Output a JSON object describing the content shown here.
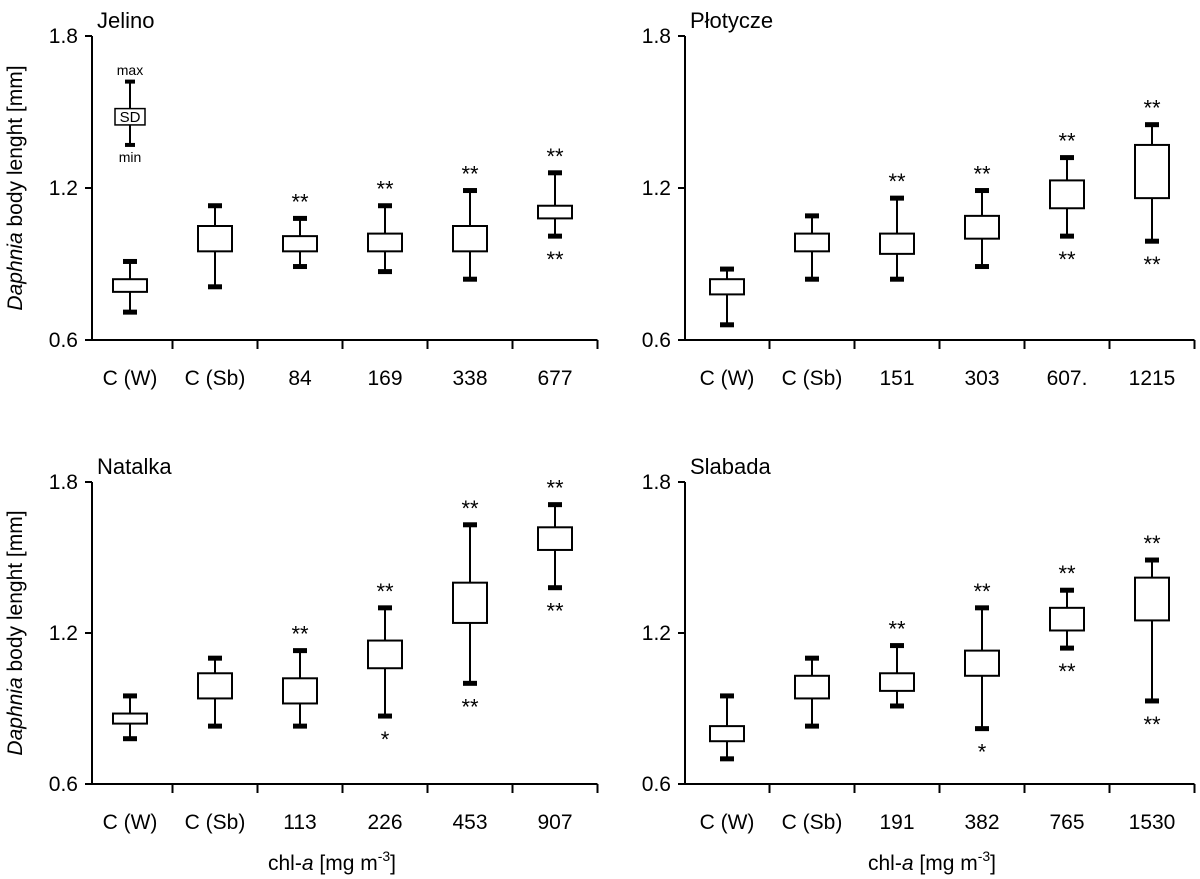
{
  "figure": {
    "ylabel_italic": "Daphnia",
    "ylabel_rest": " body lenght [mm]",
    "xlabel_main": "chl-",
    "xlabel_italic": "a",
    "xlabel_unit": " [mg m",
    "xlabel_sup": "-3",
    "xlabel_close": "]"
  },
  "legend": {
    "max_label": "max",
    "sd_label": "SD",
    "min_label": "min",
    "max": 1.62,
    "q3": 1.54,
    "q1": 1.46,
    "min": 1.37
  },
  "chart_data": [
    {
      "type": "box",
      "title": "Jelino",
      "ylim": [
        0.6,
        1.8
      ],
      "yticks": [
        "0.6",
        "1.2",
        "1.8"
      ],
      "ytick_values": [
        0.6,
        1.2,
        1.8
      ],
      "categories": [
        "C (W)",
        "C (Sb)",
        "84",
        "169",
        "338",
        "677"
      ],
      "boxes": [
        {
          "min": 0.71,
          "q1": 0.79,
          "q3": 0.84,
          "max": 0.91,
          "sig_above": "",
          "sig_below": ""
        },
        {
          "min": 0.81,
          "q1": 0.95,
          "q3": 1.05,
          "max": 1.13,
          "sig_above": "",
          "sig_below": ""
        },
        {
          "min": 0.89,
          "q1": 0.95,
          "q3": 1.01,
          "max": 1.08,
          "sig_above": "**",
          "sig_below": ""
        },
        {
          "min": 0.87,
          "q1": 0.95,
          "q3": 1.02,
          "max": 1.13,
          "sig_above": "**",
          "sig_below": ""
        },
        {
          "min": 0.84,
          "q1": 0.95,
          "q3": 1.05,
          "max": 1.19,
          "sig_above": "**",
          "sig_below": ""
        },
        {
          "min": 1.01,
          "q1": 1.08,
          "q3": 1.13,
          "max": 1.26,
          "sig_above": "**",
          "sig_below": "**"
        }
      ]
    },
    {
      "type": "box",
      "title": "Płotycze",
      "ylim": [
        0.6,
        1.8
      ],
      "yticks": [
        "0.6",
        "1.2",
        "1.8"
      ],
      "ytick_values": [
        0.6,
        1.2,
        1.8
      ],
      "categories": [
        "C (W)",
        "C (Sb)",
        "151",
        "303",
        "607.",
        "1215"
      ],
      "boxes": [
        {
          "min": 0.66,
          "q1": 0.78,
          "q3": 0.84,
          "max": 0.88,
          "sig_above": "",
          "sig_below": ""
        },
        {
          "min": 0.84,
          "q1": 0.95,
          "q3": 1.02,
          "max": 1.09,
          "sig_above": "",
          "sig_below": ""
        },
        {
          "min": 0.84,
          "q1": 0.94,
          "q3": 1.02,
          "max": 1.16,
          "sig_above": "**",
          "sig_below": ""
        },
        {
          "min": 0.89,
          "q1": 1.0,
          "q3": 1.09,
          "max": 1.19,
          "sig_above": "**",
          "sig_below": ""
        },
        {
          "min": 1.01,
          "q1": 1.12,
          "q3": 1.23,
          "max": 1.32,
          "sig_above": "**",
          "sig_below": "**"
        },
        {
          "min": 0.99,
          "q1": 1.16,
          "q3": 1.37,
          "max": 1.45,
          "sig_above": "**",
          "sig_below": "**"
        }
      ]
    },
    {
      "type": "box",
      "title": "Natalka",
      "ylim": [
        0.6,
        1.8
      ],
      "yticks": [
        "0.6",
        "1.2",
        "1.8"
      ],
      "ytick_values": [
        0.6,
        1.2,
        1.8
      ],
      "categories": [
        "C (W)",
        "C (Sb)",
        "113",
        "226",
        "453",
        "907"
      ],
      "boxes": [
        {
          "min": 0.78,
          "q1": 0.84,
          "q3": 0.88,
          "max": 0.95,
          "sig_above": "",
          "sig_below": ""
        },
        {
          "min": 0.83,
          "q1": 0.94,
          "q3": 1.04,
          "max": 1.1,
          "sig_above": "",
          "sig_below": ""
        },
        {
          "min": 0.83,
          "q1": 0.92,
          "q3": 1.02,
          "max": 1.13,
          "sig_above": "**",
          "sig_below": ""
        },
        {
          "min": 0.87,
          "q1": 1.06,
          "q3": 1.17,
          "max": 1.3,
          "sig_above": "**",
          "sig_below": "*"
        },
        {
          "min": 1.0,
          "q1": 1.24,
          "q3": 1.4,
          "max": 1.63,
          "sig_above": "**",
          "sig_below": "**"
        },
        {
          "min": 1.38,
          "q1": 1.53,
          "q3": 1.62,
          "max": 1.71,
          "sig_above": "**",
          "sig_below": "**"
        }
      ]
    },
    {
      "type": "box",
      "title": "Slabada",
      "ylim": [
        0.6,
        1.8
      ],
      "yticks": [
        "0.6",
        "1.2",
        "1.8"
      ],
      "ytick_values": [
        0.6,
        1.2,
        1.8
      ],
      "categories": [
        "C (W)",
        "C (Sb)",
        "191",
        "382",
        "765",
        "1530"
      ],
      "boxes": [
        {
          "min": 0.7,
          "q1": 0.77,
          "q3": 0.83,
          "max": 0.95,
          "sig_above": "",
          "sig_below": ""
        },
        {
          "min": 0.83,
          "q1": 0.94,
          "q3": 1.03,
          "max": 1.1,
          "sig_above": "",
          "sig_below": ""
        },
        {
          "min": 0.91,
          "q1": 0.97,
          "q3": 1.04,
          "max": 1.15,
          "sig_above": "**",
          "sig_below": ""
        },
        {
          "min": 0.82,
          "q1": 1.03,
          "q3": 1.13,
          "max": 1.3,
          "sig_above": "**",
          "sig_below": "*"
        },
        {
          "min": 1.14,
          "q1": 1.21,
          "q3": 1.3,
          "max": 1.37,
          "sig_above": "**",
          "sig_below": "**"
        },
        {
          "min": 0.93,
          "q1": 1.25,
          "q3": 1.42,
          "max": 1.49,
          "sig_above": "**",
          "sig_below": "**"
        }
      ]
    }
  ]
}
